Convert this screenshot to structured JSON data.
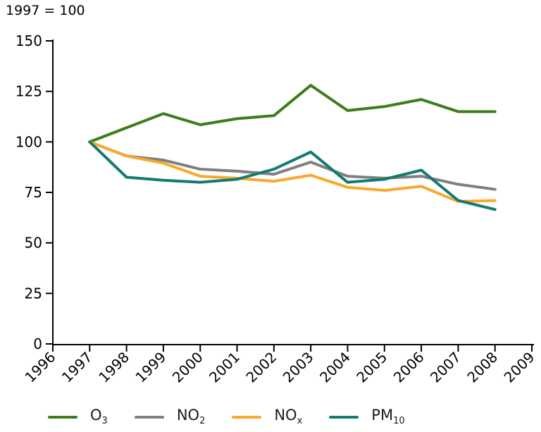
{
  "title": "1997 = 100",
  "chart_data": {
    "type": "line",
    "title": "1997 = 100",
    "xlabel": "",
    "ylabel": "",
    "x": [
      1997,
      1998,
      1999,
      2000,
      2001,
      2002,
      2003,
      2004,
      2005,
      2006,
      2007,
      2008
    ],
    "x_axis_range": [
      1996,
      2009
    ],
    "x_tick_labels": [
      "1996",
      "1997",
      "1998",
      "1999",
      "2000",
      "2001",
      "2002",
      "2003",
      "2004",
      "2005",
      "2006",
      "2007",
      "2008",
      "2009"
    ],
    "y_ticks": [
      0,
      25,
      50,
      75,
      100,
      125,
      150
    ],
    "ylim": [
      0,
      150
    ],
    "grid": false,
    "legend_position": "bottom",
    "axis_color": "#000000",
    "series": [
      {
        "name": "O3",
        "label_base": "O",
        "label_sub": "3",
        "color": "#3e7d1c",
        "values": [
          100,
          107,
          114,
          108.5,
          111.5,
          113,
          128,
          115.5,
          117.5,
          121,
          115,
          115
        ]
      },
      {
        "name": "NO2",
        "label_base": "NO",
        "label_sub": "2",
        "color": "#7f7f7f",
        "values": [
          100,
          93,
          91,
          86.5,
          85.5,
          84,
          90,
          83,
          82,
          83,
          79,
          76.5
        ]
      },
      {
        "name": "NOx",
        "label_base": "NO",
        "label_sub": "x",
        "color": "#f9a82d",
        "values": [
          100,
          93,
          89.5,
          83,
          82,
          80.5,
          83.5,
          77.5,
          76,
          78,
          70.5,
          71
        ]
      },
      {
        "name": "PM10",
        "label_base": "PM",
        "label_sub": "10",
        "color": "#147a72",
        "values": [
          100,
          82.5,
          81,
          80,
          81.5,
          86.5,
          95,
          80,
          81.5,
          86,
          71,
          66.5
        ]
      }
    ]
  }
}
